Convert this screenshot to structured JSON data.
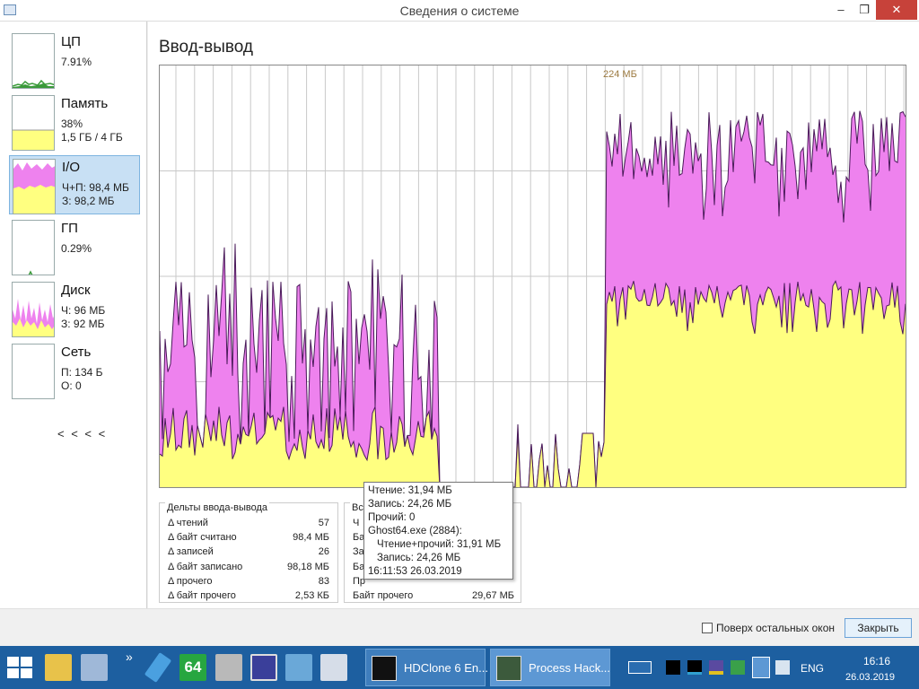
{
  "window": {
    "title": "Сведения о системе",
    "minimize_glyph": "–",
    "maximize_glyph": "❐",
    "close_glyph": "✕"
  },
  "sidebar": {
    "items": [
      {
        "name": "ЦП",
        "line1": "7.91%",
        "line2": ""
      },
      {
        "name": "Память",
        "line1": "38%",
        "line2": "1,5 ГБ / 4 ГБ"
      },
      {
        "name": "I/O",
        "line1": "Ч+П: 98,4 МБ",
        "line2": "З: 98,2 МБ"
      },
      {
        "name": "ГП",
        "line1": "0.29%",
        "line2": ""
      },
      {
        "name": "Диск",
        "line1": "Ч: 96 МБ",
        "line2": "З: 92 МБ"
      },
      {
        "name": "Сеть",
        "line1": "П: 134 Б",
        "line2": "О: 0"
      }
    ],
    "collapse_label": "< < < <"
  },
  "main": {
    "title": "Ввод-вывод",
    "peak_label": "224 МБ"
  },
  "chart_data": {
    "type": "area",
    "series": [
      {
        "name": "Чтение+прочий",
        "color": "#ee82ee"
      },
      {
        "name": "Запись",
        "color": "#ffff80"
      }
    ],
    "ylim": [
      0,
      224
    ],
    "ymax_label": "224 МБ",
    "grid": true
  },
  "deltas": {
    "title": "Дельты ввода-вывода",
    "rows": [
      {
        "label": "Δ чтений",
        "value": "57"
      },
      {
        "label": "Δ байт считано",
        "value": "98,4 МБ"
      },
      {
        "label": "Δ записей",
        "value": "26"
      },
      {
        "label": "Δ байт записано",
        "value": "98,18 МБ"
      },
      {
        "label": "Δ прочего",
        "value": "83"
      },
      {
        "label": "Δ байт прочего",
        "value": "2,53 КБ"
      }
    ]
  },
  "totals": {
    "title": "Вс",
    "rows": [
      {
        "label": "Ч",
        "value": ""
      },
      {
        "label": "Ба",
        "value": ""
      },
      {
        "label": "За",
        "value": ""
      },
      {
        "label": "Ба",
        "value": ""
      },
      {
        "label": "Пр",
        "value": ""
      },
      {
        "label": "Байт прочего",
        "value": "29,67 МБ"
      }
    ]
  },
  "tooltip": {
    "read": "Чтение: 31,94 МБ",
    "write": "Запись: 24,26 МБ",
    "other": "Прочий: 0",
    "process": "Ghost64.exe (2884):",
    "proc_readother": "Чтение+прочий: 31,91 МБ",
    "proc_write": "Запись: 24,26 МБ",
    "timestamp": "16:11:53 26.03.2019"
  },
  "footer": {
    "always_on_top_label": "Поверх остальных окон",
    "close_label": "Закрыть"
  },
  "taskbar": {
    "overflow_glyph": "»",
    "pinned_64_label": "64",
    "tasks": [
      {
        "label": "HDClone 6 En..."
      },
      {
        "label": "Process Hack..."
      }
    ],
    "lang": "ENG",
    "time": "16:16",
    "date": "26.03.2019"
  }
}
